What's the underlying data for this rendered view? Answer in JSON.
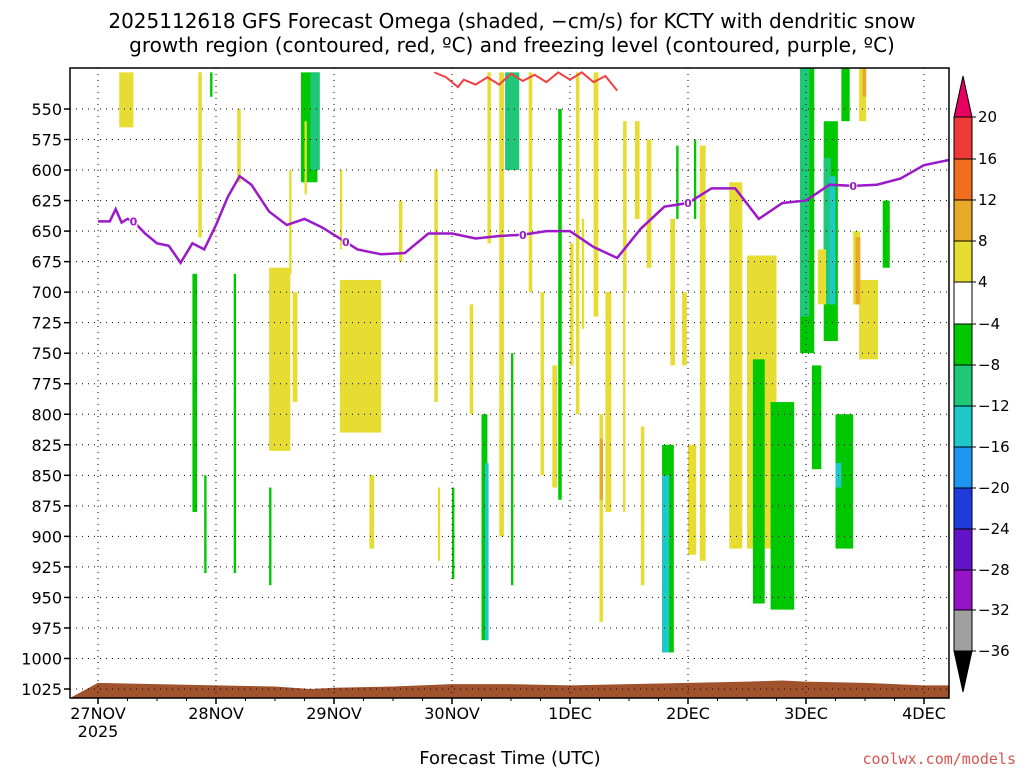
{
  "chart_data": {
    "type": "contour",
    "title_line1": "2025112618 GFS Forecast Omega (shaded, −cm/s) for KCTY with dendritic snow",
    "title_line2": "growth region (contoured, red, ºC) and freezing level (contoured, purple, ºC)",
    "xlabel": "Forecast Time (UTC)",
    "ylabel": "",
    "credit": "coolwx.com/models",
    "y_ticks": [
      550,
      575,
      600,
      625,
      650,
      675,
      700,
      725,
      750,
      775,
      800,
      825,
      850,
      875,
      900,
      925,
      950,
      975,
      1000,
      1025
    ],
    "y_tick_labels": [
      "550",
      "575",
      "600",
      "625",
      "650",
      "675",
      "700",
      "725",
      "750",
      "775",
      "800",
      "825",
      "850",
      "875",
      "900",
      "925",
      "950",
      "975",
      "1000",
      "1025"
    ],
    "x_ticks": [
      0,
      1,
      2,
      3,
      4,
      5,
      6,
      7
    ],
    "x_tick_labels": [
      "27NOV",
      "28NOV",
      "29NOV",
      "30NOV",
      "1DEC",
      "2DEC",
      "3DEC",
      "4DEC"
    ],
    "x_year_label": "2025",
    "colorbar": {
      "levels": [
        20,
        16,
        12,
        8,
        4,
        -4,
        -8,
        -12,
        -16,
        -20,
        -24,
        -28,
        -32,
        -36
      ],
      "labels": [
        "20",
        "16",
        "12",
        "8",
        "4",
        "−4",
        "−8",
        "−12",
        "−16",
        "−20",
        "−24",
        "−28",
        "−32",
        "−36"
      ],
      "colors": [
        "#e60060",
        "#f03a3a",
        "#f06e1e",
        "#e6aa28",
        "#e6dc32",
        "#ffffff",
        "#00c800",
        "#1ec878",
        "#1ec8c8",
        "#1e96f0",
        "#1e3cdc",
        "#6414c8",
        "#9614c8",
        "#a0a0a0",
        "#000000"
      ]
    },
    "freezing_level": {
      "color": "#9b19c9",
      "contour_label": "0",
      "x_days": [
        0,
        0.1,
        0.15,
        0.2,
        0.25,
        0.3,
        0.4,
        0.5,
        0.6,
        0.7,
        0.8,
        0.9,
        1.0,
        1.1,
        1.2,
        1.3,
        1.45,
        1.6,
        1.75,
        1.9,
        2.0,
        2.2,
        2.4,
        2.6,
        2.8,
        3.0,
        3.2,
        3.4,
        3.6,
        3.8,
        4.0,
        4.2,
        4.4,
        4.6,
        4.8,
        5.0,
        5.2,
        5.4,
        5.6,
        5.8,
        6.0,
        6.2,
        6.4,
        6.6,
        6.8,
        7.0,
        7.2,
        7.4
      ],
      "pressure": [
        642,
        642,
        632,
        643,
        640,
        642,
        652,
        660,
        662,
        676,
        660,
        665,
        645,
        622,
        605,
        612,
        634,
        645,
        640,
        647,
        653,
        665,
        669,
        668,
        652,
        652,
        656,
        654,
        653,
        650,
        650,
        663,
        672,
        648,
        630,
        627,
        615,
        615,
        640,
        627,
        625,
        612,
        613,
        612,
        607,
        596,
        592,
        592
      ]
    },
    "dgz_contour": {
      "color": "#f04040",
      "segments": [
        {
          "x_days": [
            2.85,
            2.95,
            3.05,
            3.1,
            3.2,
            3.3,
            3.4,
            3.5,
            3.6,
            3.7,
            3.8,
            3.9,
            4.0,
            4.1,
            4.2,
            4.3,
            4.4
          ],
          "pressure": [
            520,
            524,
            532,
            526,
            530,
            524,
            530,
            521,
            527,
            522,
            528,
            520,
            526,
            520,
            528,
            523,
            535
          ]
        }
      ]
    },
    "omega_shading": [
      {
        "x_day": 0.18,
        "width_days": 0.12,
        "p_top": 520,
        "p_bottom": 565,
        "level": 4
      },
      {
        "x_day": 0.85,
        "width_days": 0.03,
        "p_top": 520,
        "p_bottom": 655,
        "level": 4
      },
      {
        "x_day": 0.95,
        "width_days": 0.02,
        "p_top": 520,
        "p_bottom": 540,
        "level": -4
      },
      {
        "x_day": 1.72,
        "width_days": 0.14,
        "p_top": 520,
        "p_bottom": 610,
        "level": -4
      },
      {
        "x_day": 1.8,
        "width_days": 0.08,
        "p_top": 520,
        "p_bottom": 600,
        "level": -8
      },
      {
        "x_day": 1.18,
        "width_days": 0.03,
        "p_top": 550,
        "p_bottom": 610,
        "level": 4
      },
      {
        "x_day": 1.62,
        "width_days": 0.02,
        "p_top": 600,
        "p_bottom": 685,
        "level": 4
      },
      {
        "x_day": 1.75,
        "width_days": 0.02,
        "p_top": 560,
        "p_bottom": 620,
        "level": 4
      },
      {
        "x_day": 2.05,
        "width_days": 0.02,
        "p_top": 600,
        "p_bottom": 665,
        "level": 4
      },
      {
        "x_day": 1.15,
        "width_days": 0.02,
        "p_top": 685,
        "p_bottom": 930,
        "level": -4
      },
      {
        "x_day": 1.45,
        "width_days": 0.02,
        "p_top": 860,
        "p_bottom": 940,
        "level": -4
      },
      {
        "x_day": 2.05,
        "width_days": 0.35,
        "p_top": 690,
        "p_bottom": 815,
        "level": 4
      },
      {
        "x_day": 3.25,
        "width_days": 0.05,
        "p_top": 800,
        "p_bottom": 985,
        "level": -4
      },
      {
        "x_day": 3.28,
        "width_days": 0.03,
        "p_top": 840,
        "p_bottom": 985,
        "level": -12
      },
      {
        "x_day": 3.45,
        "width_days": 0.12,
        "p_top": 520,
        "p_bottom": 600,
        "level": -8
      },
      {
        "x_day": 3.4,
        "width_days": 0.04,
        "p_top": 520,
        "p_bottom": 900,
        "level": 4
      },
      {
        "x_day": 3.5,
        "width_days": 0.02,
        "p_top": 750,
        "p_bottom": 940,
        "level": -4
      },
      {
        "x_day": 3.65,
        "width_days": 0.03,
        "p_top": 520,
        "p_bottom": 700,
        "level": 4
      },
      {
        "x_day": 3.9,
        "width_days": 0.03,
        "p_top": 550,
        "p_bottom": 870,
        "level": -4
      },
      {
        "x_day": 4.05,
        "width_days": 0.03,
        "p_top": 520,
        "p_bottom": 800,
        "level": 4
      },
      {
        "x_day": 4.2,
        "width_days": 0.04,
        "p_top": 520,
        "p_bottom": 720,
        "level": 4
      },
      {
        "x_day": 4.3,
        "width_days": 0.05,
        "p_top": 700,
        "p_bottom": 880,
        "level": 4
      },
      {
        "x_day": 4.25,
        "width_days": 0.03,
        "p_top": 800,
        "p_bottom": 970,
        "level": 4
      },
      {
        "x_day": 4.25,
        "width_days": 0.03,
        "p_top": 820,
        "p_bottom": 870,
        "level": 8
      },
      {
        "x_day": 4.45,
        "width_days": 0.03,
        "p_top": 560,
        "p_bottom": 700,
        "level": 4
      },
      {
        "x_day": 4.55,
        "width_days": 0.04,
        "p_top": 560,
        "p_bottom": 640,
        "level": 4
      },
      {
        "x_day": 4.65,
        "width_days": 0.04,
        "p_top": 575,
        "p_bottom": 680,
        "level": 4
      },
      {
        "x_day": 4.85,
        "width_days": 0.04,
        "p_top": 640,
        "p_bottom": 760,
        "level": 4
      },
      {
        "x_day": 4.9,
        "width_days": 0.02,
        "p_top": 580,
        "p_bottom": 640,
        "level": -4
      },
      {
        "x_day": 4.95,
        "width_days": 0.04,
        "p_top": 700,
        "p_bottom": 760,
        "level": 4
      },
      {
        "x_day": 5.05,
        "width_days": 0.02,
        "p_top": 575,
        "p_bottom": 640,
        "level": -4
      },
      {
        "x_day": 5.1,
        "width_days": 0.05,
        "p_top": 580,
        "p_bottom": 920,
        "level": 4
      },
      {
        "x_day": 4.78,
        "width_days": 0.1,
        "p_top": 825,
        "p_bottom": 995,
        "level": -4
      },
      {
        "x_day": 4.78,
        "width_days": 0.06,
        "p_top": 850,
        "p_bottom": 995,
        "level": -12
      },
      {
        "x_day": 5.0,
        "width_days": 0.07,
        "p_top": 825,
        "p_bottom": 915,
        "level": 4
      },
      {
        "x_day": 5.35,
        "width_days": 0.11,
        "p_top": 610,
        "p_bottom": 910,
        "level": 4
      },
      {
        "x_day": 5.5,
        "width_days": 0.25,
        "p_top": 670,
        "p_bottom": 910,
        "level": 4
      },
      {
        "x_day": 5.55,
        "width_days": 0.1,
        "p_top": 755,
        "p_bottom": 955,
        "level": -4
      },
      {
        "x_day": 5.7,
        "width_days": 0.2,
        "p_top": 790,
        "p_bottom": 960,
        "level": -4
      },
      {
        "x_day": 5.95,
        "width_days": 0.12,
        "p_top": 510,
        "p_bottom": 750,
        "level": -4
      },
      {
        "x_day": 5.95,
        "width_days": 0.08,
        "p_top": 510,
        "p_bottom": 720,
        "level": -8
      },
      {
        "x_day": 6.05,
        "width_days": 0.08,
        "p_top": 760,
        "p_bottom": 845,
        "level": -4
      },
      {
        "x_day": 6.15,
        "width_days": 0.12,
        "p_top": 560,
        "p_bottom": 740,
        "level": -4
      },
      {
        "x_day": 6.15,
        "width_days": 0.06,
        "p_top": 590,
        "p_bottom": 710,
        "level": -8
      },
      {
        "x_day": 6.2,
        "width_days": 0.05,
        "p_top": 605,
        "p_bottom": 710,
        "level": -12
      },
      {
        "x_day": 6.3,
        "width_days": 0.07,
        "p_top": 510,
        "p_bottom": 560,
        "level": -4
      },
      {
        "x_day": 6.45,
        "width_days": 0.06,
        "p_top": 510,
        "p_bottom": 560,
        "level": 4
      },
      {
        "x_day": 6.48,
        "width_days": 0.03,
        "p_top": 510,
        "p_bottom": 540,
        "level": 8
      },
      {
        "x_day": 6.45,
        "width_days": 0.16,
        "p_top": 690,
        "p_bottom": 755,
        "level": 4
      },
      {
        "x_day": 6.4,
        "width_days": 0.06,
        "p_top": 650,
        "p_bottom": 710,
        "level": 4
      },
      {
        "x_day": 6.42,
        "width_days": 0.04,
        "p_top": 655,
        "p_bottom": 710,
        "level": 8
      },
      {
        "x_day": 6.25,
        "width_days": 0.15,
        "p_top": 800,
        "p_bottom": 910,
        "level": -4
      },
      {
        "x_day": 6.25,
        "width_days": 0.05,
        "p_top": 840,
        "p_bottom": 860,
        "level": -12
      },
      {
        "x_day": 6.1,
        "width_days": 0.07,
        "p_top": 665,
        "p_bottom": 710,
        "level": 4
      },
      {
        "x_day": 6.65,
        "width_days": 0.06,
        "p_top": 625,
        "p_bottom": 680,
        "level": -4
      },
      {
        "x_day": 1.45,
        "width_days": 0.18,
        "p_top": 680,
        "p_bottom": 830,
        "level": 4
      },
      {
        "x_day": 1.65,
        "width_days": 0.04,
        "p_top": 700,
        "p_bottom": 790,
        "level": 4
      },
      {
        "x_day": 0.8,
        "width_days": 0.04,
        "p_top": 685,
        "p_bottom": 880,
        "level": -4
      },
      {
        "x_day": 0.9,
        "width_days": 0.02,
        "p_top": 850,
        "p_bottom": 930,
        "level": -4
      },
      {
        "x_day": 2.3,
        "width_days": 0.04,
        "p_top": 850,
        "p_bottom": 910,
        "level": 4
      },
      {
        "x_day": 2.55,
        "width_days": 0.03,
        "p_top": 625,
        "p_bottom": 675,
        "level": 4
      },
      {
        "x_day": 2.85,
        "width_days": 0.03,
        "p_top": 600,
        "p_bottom": 790,
        "level": 4
      },
      {
        "x_day": 2.88,
        "width_days": 0.02,
        "p_top": 860,
        "p_bottom": 920,
        "level": 4
      },
      {
        "x_day": 3.0,
        "width_days": 0.02,
        "p_top": 860,
        "p_bottom": 935,
        "level": -4
      },
      {
        "x_day": 3.15,
        "width_days": 0.03,
        "p_top": 710,
        "p_bottom": 800,
        "level": 4
      },
      {
        "x_day": 3.3,
        "width_days": 0.03,
        "p_top": 520,
        "p_bottom": 660,
        "level": 4
      },
      {
        "x_day": 4.0,
        "width_days": 0.03,
        "p_top": 660,
        "p_bottom": 760,
        "level": 4
      },
      {
        "x_day": 3.75,
        "width_days": 0.03,
        "p_top": 700,
        "p_bottom": 850,
        "level": 4
      },
      {
        "x_day": 3.85,
        "width_days": 0.04,
        "p_top": 760,
        "p_bottom": 860,
        "level": 4
      },
      {
        "x_day": 4.1,
        "width_days": 0.02,
        "p_top": 640,
        "p_bottom": 730,
        "level": 4
      },
      {
        "x_day": 4.45,
        "width_days": 0.02,
        "p_top": 700,
        "p_bottom": 880,
        "level": 4
      },
      {
        "x_day": 4.6,
        "width_days": 0.03,
        "p_top": 810,
        "p_bottom": 940,
        "level": 4
      }
    ],
    "ground": {
      "color": "#a0522d",
      "x_days": [
        0,
        0.5,
        1.0,
        1.5,
        1.8,
        2.0,
        2.5,
        3.0,
        3.5,
        4.0,
        4.5,
        5.0,
        5.5,
        5.8,
        6.0,
        6.5,
        7.0,
        7.4
      ],
      "surface_pressure": [
        1020,
        1021,
        1022,
        1023,
        1025,
        1024,
        1023,
        1021,
        1021,
        1022,
        1021,
        1020,
        1019,
        1018,
        1019,
        1020,
        1022,
        1022
      ]
    }
  }
}
